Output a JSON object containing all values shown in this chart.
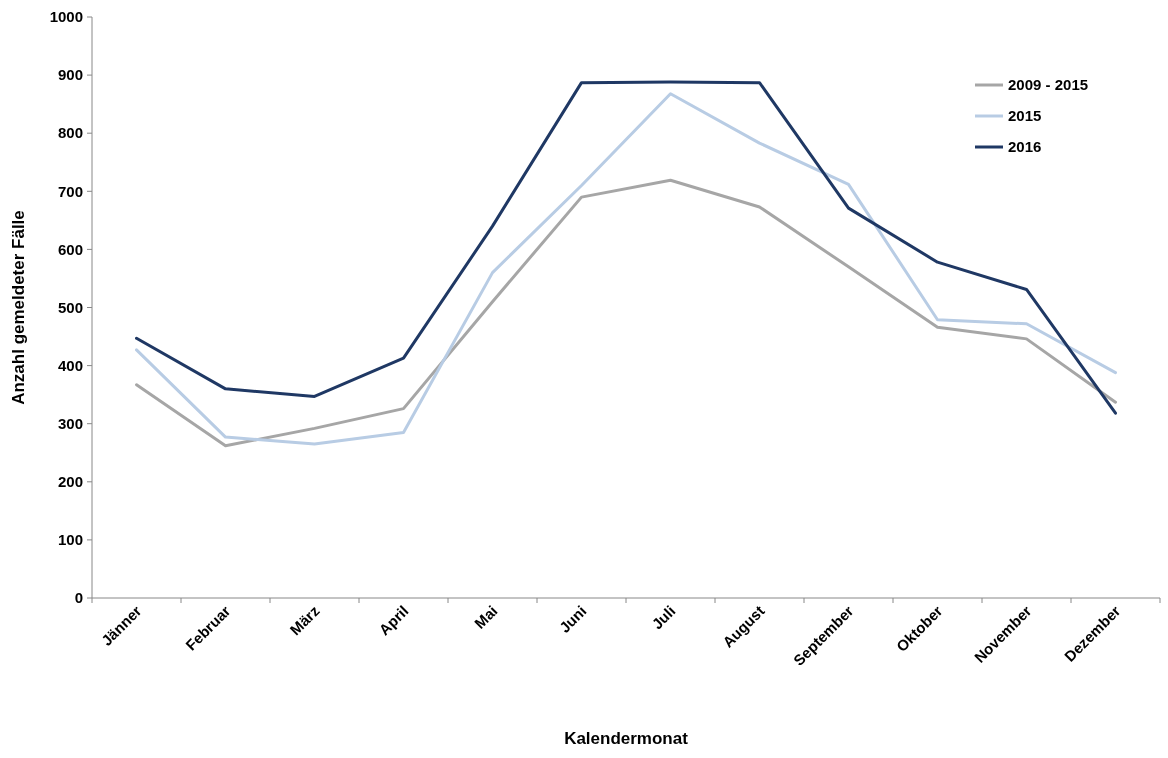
{
  "chart_data": {
    "type": "line",
    "xlabel": "Kalendermonat",
    "ylabel": "Anzahl gemeldeter Fälle",
    "categories": [
      "Jänner",
      "Februar",
      "März",
      "April",
      "Mai",
      "Juni",
      "Juli",
      "August",
      "September",
      "Oktober",
      "November",
      "Dezember"
    ],
    "series": [
      {
        "name": "2009 - 2015",
        "color": "#a6a6a6",
        "values": [
          367,
          262,
          292,
          326,
          510,
          690,
          719,
          673,
          570,
          466,
          446,
          337
        ]
      },
      {
        "name": "2015",
        "color": "#b8cce4",
        "values": [
          427,
          277,
          265,
          285,
          560,
          710,
          868,
          783,
          712,
          479,
          472,
          388
        ]
      },
      {
        "name": "2016",
        "color": "#1f3864",
        "values": [
          447,
          360,
          347,
          413,
          640,
          887,
          888,
          887,
          671,
          578,
          531,
          318
        ]
      }
    ],
    "ylim": [
      0,
      1000
    ],
    "yticks": [
      0,
      100,
      200,
      300,
      400,
      500,
      600,
      700,
      800,
      900,
      1000
    ],
    "grid": false,
    "legend": "top right",
    "marker": "none",
    "line_style": "solid"
  }
}
